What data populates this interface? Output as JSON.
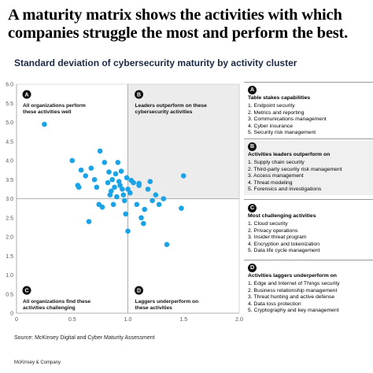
{
  "headline": "A maturity matrix shows the activities with which companies struggle the most and perform the best.",
  "chart_data": {
    "type": "scatter",
    "title": "Standard deviation of cybersecurity maturity by activity cluster",
    "xlim": [
      0,
      2.0
    ],
    "ylim": [
      0,
      6.0
    ],
    "x_ticks": [
      "0",
      "0.5",
      "1.0",
      "1.5",
      "2.0"
    ],
    "y_ticks": [
      "0",
      "0.5",
      "1.0",
      "1.5",
      "2.0",
      "2.5",
      "3.0",
      "3.5",
      "4.0",
      "4.5",
      "5.0",
      "5.5",
      "6.0"
    ],
    "quadrant_split": {
      "x": 1.0,
      "y": 3.0
    },
    "highlighted_quadrant": "top-right",
    "point_color": "#1aa3e6",
    "quadrant_bg": "#ececec",
    "points": [
      [
        0.25,
        4.95
      ],
      [
        0.5,
        4.0
      ],
      [
        0.58,
        3.75
      ],
      [
        0.55,
        3.35
      ],
      [
        0.56,
        3.3
      ],
      [
        0.62,
        3.6
      ],
      [
        0.67,
        3.8
      ],
      [
        0.7,
        3.5
      ],
      [
        0.72,
        3.3
      ],
      [
        0.74,
        2.85
      ],
      [
        0.77,
        2.78
      ],
      [
        0.75,
        4.25
      ],
      [
        0.79,
        3.95
      ],
      [
        0.82,
        3.42
      ],
      [
        0.83,
        3.7
      ],
      [
        0.84,
        3.1
      ],
      [
        0.85,
        3.2
      ],
      [
        0.86,
        3.5
      ],
      [
        0.87,
        2.85
      ],
      [
        0.88,
        3.3
      ],
      [
        0.89,
        3.65
      ],
      [
        0.9,
        3.05
      ],
      [
        0.91,
        3.95
      ],
      [
        0.92,
        3.45
      ],
      [
        0.93,
        3.35
      ],
      [
        0.94,
        3.72
      ],
      [
        0.95,
        3.25
      ],
      [
        0.96,
        3.1
      ],
      [
        0.97,
        2.95
      ],
      [
        0.98,
        2.6
      ],
      [
        0.99,
        3.55
      ],
      [
        1.0,
        3.25
      ],
      [
        1.0,
        2.15
      ],
      [
        1.02,
        3.15
      ],
      [
        1.03,
        3.48
      ],
      [
        1.05,
        3.42
      ],
      [
        1.08,
        2.85
      ],
      [
        1.1,
        3.35
      ],
      [
        1.1,
        3.4
      ],
      [
        1.12,
        2.5
      ],
      [
        1.14,
        2.35
      ],
      [
        1.15,
        2.72
      ],
      [
        1.18,
        3.25
      ],
      [
        1.2,
        3.45
      ],
      [
        1.22,
        2.95
      ],
      [
        1.25,
        3.1
      ],
      [
        1.28,
        2.85
      ],
      [
        1.32,
        3.0
      ],
      [
        1.35,
        1.8
      ],
      [
        1.48,
        2.75
      ],
      [
        1.5,
        3.6
      ],
      [
        0.65,
        2.4
      ]
    ],
    "quadrant_labels": [
      {
        "badge": "A",
        "text": "All organizations perform these activities well"
      },
      {
        "badge": "B",
        "text": "Leaders outperform on these cybersecurity activities"
      },
      {
        "badge": "C",
        "text": "All organizations find these activities challenging"
      },
      {
        "badge": "D",
        "text": "Laggers underperform on these activities"
      }
    ]
  },
  "side_panels": [
    {
      "badge": "A",
      "title": "Table stakes capabilities",
      "items": [
        "1. Endpoint security",
        "2. Metrics and reporting",
        "3. Communications management",
        "4. Cyber insurance",
        "5. Security risk management"
      ]
    },
    {
      "badge": "B",
      "title": "Activities leaders outperform on",
      "items": [
        "1. Supply chain security",
        "2. Third-party security risk management",
        "3. Access management",
        "4. Threat modeling",
        "5. Forensics and investigations"
      ]
    },
    {
      "badge": "C",
      "title": "Most challenging activities",
      "items": [
        "1. Cloud security",
        "2. Privacy operations",
        "3. Insider threat program",
        "4. Encryption and tokenization",
        "5. Data life cycle management"
      ]
    },
    {
      "badge": "D",
      "title": "Activities laggers underperform on",
      "items": [
        "1. Edge and Internet of Things security",
        "2. Business relationship management",
        "3. Threat hunting and active defense",
        "4. Data loss protection",
        "5. Cryptography and key management"
      ]
    }
  ],
  "source": "Source: McKinsey Digital and Cyber Maturity Assessment",
  "brand": "McKinsey & Company"
}
